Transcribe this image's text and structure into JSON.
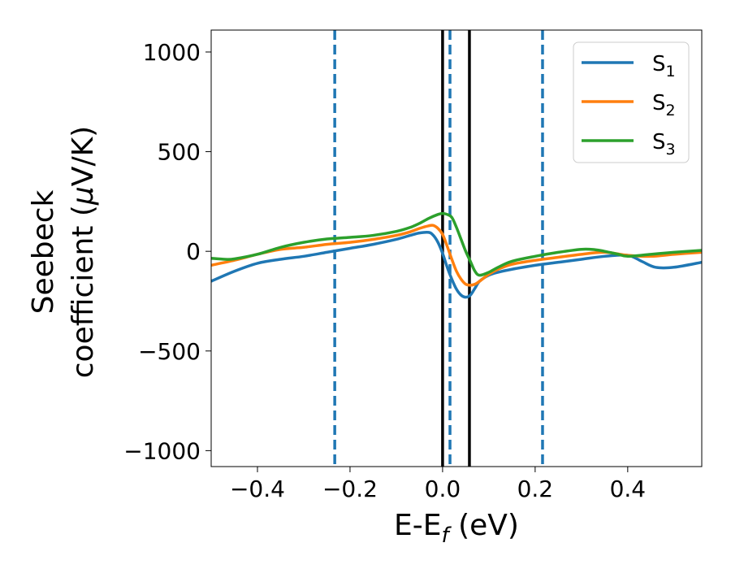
{
  "chart_data": {
    "type": "line",
    "xlabel": "E-E",
    "xlabel_sub": "f",
    "xlabel_unit": " (eV)",
    "ylabel_line1": "Seebeck",
    "ylabel_line2": "coefficient  (",
    "ylabel_mu": "μ",
    "ylabel_unit": "V/K)",
    "xlim": [
      -0.5,
      0.56
    ],
    "ylim": [
      -1080,
      1110
    ],
    "xticks": [
      -0.4,
      -0.2,
      0.0,
      0.2,
      0.4
    ],
    "xtick_labels": [
      "−0.4",
      "−0.2",
      "0.0",
      "0.2",
      "0.4"
    ],
    "yticks": [
      -1000,
      -500,
      0,
      500,
      1000
    ],
    "ytick_labels": [
      "−1000",
      "−500",
      "0",
      "500",
      "1000"
    ],
    "grid": false,
    "legend_position": "top-right",
    "vlines_solid": [
      0.0,
      0.058
    ],
    "vlines_dashed": [
      -0.233,
      0.016,
      0.216
    ],
    "series": [
      {
        "name": "S",
        "name_sub": "1",
        "color": "#1f77b4",
        "x": [
          -0.5,
          -0.45,
          -0.4,
          -0.35,
          -0.3,
          -0.25,
          -0.2,
          -0.15,
          -0.1,
          -0.07,
          -0.05,
          -0.03,
          -0.02,
          -0.01,
          0.0,
          0.01,
          0.02,
          0.03,
          0.04,
          0.05,
          0.06,
          0.07,
          0.08,
          0.1,
          0.12,
          0.15,
          0.2,
          0.25,
          0.3,
          0.35,
          0.4,
          0.43,
          0.46,
          0.5,
          0.56
        ],
        "y": [
          -150,
          -100,
          -60,
          -40,
          -25,
          -5,
          15,
          35,
          60,
          80,
          92,
          95,
          80,
          45,
          -10,
          -80,
          -140,
          -190,
          -220,
          -230,
          -220,
          -185,
          -150,
          -120,
          -105,
          -90,
          -70,
          -55,
          -40,
          -25,
          -20,
          -50,
          -80,
          -80,
          -55
        ]
      },
      {
        "name": "S",
        "name_sub": "2",
        "color": "#ff7f0e",
        "x": [
          -0.5,
          -0.45,
          -0.4,
          -0.35,
          -0.3,
          -0.25,
          -0.2,
          -0.15,
          -0.1,
          -0.07,
          -0.05,
          -0.03,
          -0.02,
          -0.01,
          0.0,
          0.01,
          0.02,
          0.03,
          0.04,
          0.05,
          0.06,
          0.07,
          0.08,
          0.1,
          0.12,
          0.15,
          0.2,
          0.25,
          0.3,
          0.35,
          0.4,
          0.45,
          0.5,
          0.56
        ],
        "y": [
          -70,
          -45,
          -15,
          10,
          20,
          35,
          45,
          60,
          80,
          98,
          115,
          128,
          130,
          115,
          85,
          25,
          -40,
          -100,
          -140,
          -165,
          -170,
          -165,
          -150,
          -115,
          -90,
          -65,
          -45,
          -30,
          -15,
          -5,
          -20,
          -25,
          -15,
          -5
        ]
      },
      {
        "name": "S",
        "name_sub": "3",
        "color": "#2ca02c",
        "x": [
          -0.5,
          -0.47,
          -0.45,
          -0.4,
          -0.35,
          -0.3,
          -0.25,
          -0.2,
          -0.15,
          -0.1,
          -0.07,
          -0.05,
          -0.03,
          -0.01,
          0.0,
          0.01,
          0.02,
          0.03,
          0.04,
          0.05,
          0.06,
          0.07,
          0.08,
          0.1,
          0.12,
          0.15,
          0.2,
          0.25,
          0.3,
          0.33,
          0.35,
          0.38,
          0.4,
          0.45,
          0.5,
          0.56
        ],
        "y": [
          -35,
          -40,
          -38,
          -15,
          20,
          45,
          62,
          70,
          80,
          100,
          120,
          140,
          165,
          185,
          190,
          185,
          170,
          120,
          60,
          0,
          -50,
          -100,
          -120,
          -105,
          -80,
          -50,
          -25,
          -5,
          10,
          8,
          0,
          -15,
          -25,
          -15,
          -5,
          5
        ]
      }
    ]
  }
}
